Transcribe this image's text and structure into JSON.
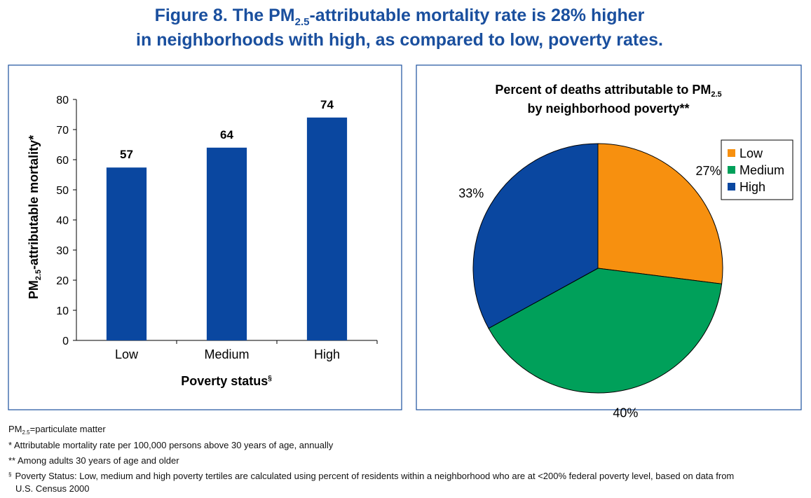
{
  "figure_title": [
    "Figure 8. The PM",
    "2.5",
    "-attributable mortality rate is 28% higher",
    "in neighborhoods with high, as compared to low, poverty rates."
  ],
  "chart_data": [
    {
      "type": "bar",
      "ylabel": [
        "PM",
        "2.5",
        "-attributable mortality*"
      ],
      "xlabel": [
        "Poverty status",
        "§"
      ],
      "categories": [
        "Low",
        "Medium",
        "High"
      ],
      "values": [
        57.4,
        64,
        74
      ],
      "value_labels": [
        "57",
        "64",
        "74"
      ],
      "color": "#0a47a0",
      "ylim": [
        0,
        80
      ],
      "yticks": [
        0,
        10,
        20,
        30,
        40,
        50,
        60,
        70,
        80
      ]
    },
    {
      "type": "pie",
      "title": [
        "Percent of deaths attributable to PM",
        "2.5",
        "by neighborhood poverty**"
      ],
      "categories": [
        "Low",
        "Medium",
        "High"
      ],
      "values": [
        27,
        40,
        33
      ],
      "value_labels": [
        "27%",
        "40%",
        "33%"
      ],
      "colors": [
        "#f7900f",
        "#00a05a",
        "#0a47a0"
      ],
      "legend": "upper right"
    }
  ],
  "footnotes": [
    [
      "PM",
      "2.5",
      "=particulate matter"
    ],
    "* Attributable mortality rate per 100,000 persons above 30 years of age, annually",
    "** Among adults 30 years of age and older",
    [
      "§",
      "Poverty Status: Low, medium and high poverty tertiles are calculated using percent of residents within a neighborhood who are at <200% federal poverty level, based on data from",
      "U.S. Census 2000"
    ]
  ]
}
